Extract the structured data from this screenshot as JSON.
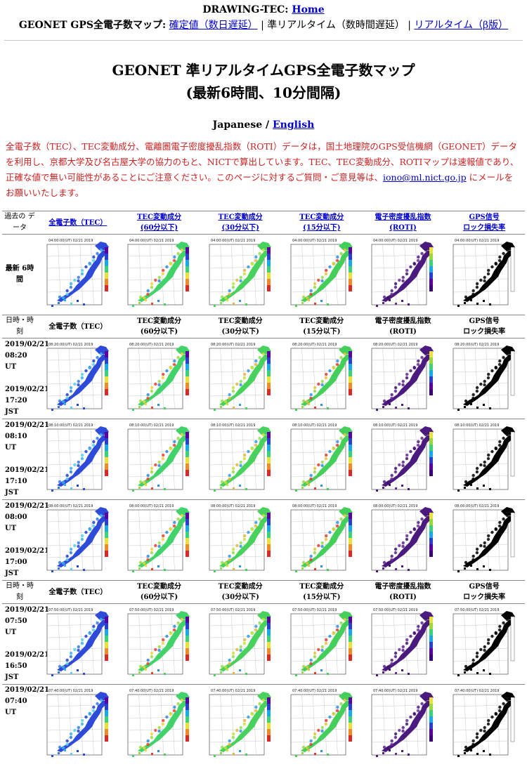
{
  "nav": {
    "site_label": "DRAWING-TEC:",
    "home_link": "Home",
    "map_label": "GEONET GPS全電子数マップ:",
    "final_link": "確定値（数日遅延）",
    "separator1": "|",
    "near_realtime": "準リアルタイム（数時間遅延）",
    "separator2": "|",
    "realtime_beta_link": "リアルタイム（β版）"
  },
  "title": {
    "line1": "GEONET 準リアルタイムGPS全電子数マップ",
    "line2": "(最新6時間、10分間隔)"
  },
  "language": {
    "japanese": "Japanese /",
    "english_link": "English"
  },
  "notice": {
    "text": "全電子数（TEC）、TEC変動成分、電離圏電子密度擾乱指数（ROTI）データは，国土地理院のGPS受信機網（GEONET）データを利用し、京都大学及び名古屋大学の協力のもと、NICTで算出しています。TEC、TEC変動成分、ROTIマップは速報値であり、正確な値で無い可能性があることにご注意ください。このページに対するご質問・ご意見等は、",
    "email_link": "iono@ml.nict.go.jp",
    "text_after": " にメールをお願いいたします。"
  },
  "table": {
    "past_data_label": "過去の データ",
    "link_headers": [
      {
        "line1": "全電子数（TEC）",
        "line2": ""
      },
      {
        "line1": "TEC変動成分",
        "line2": "(60分以下)"
      },
      {
        "line1": "TEC変動成分",
        "line2": "(30分以下)"
      },
      {
        "line1": "TEC変動成分",
        "line2": "(15分以下)"
      },
      {
        "line1": "電子密度擾乱指数",
        "line2": "(ROTI)"
      },
      {
        "line1": "GPS信号",
        "line2": "ロック損失率"
      }
    ],
    "latest_label": "最新 6時間",
    "datetime_label": "日時・時 刻",
    "plain_headers": [
      {
        "line1": "全電子数（TEC）",
        "line2": ""
      },
      {
        "line1": "TEC変動成分",
        "line2": "(60分以下)"
      },
      {
        "line1": "TEC変動成分",
        "line2": "(30分以下)"
      },
      {
        "line1": "TEC変動成分",
        "line2": "(15分以下)"
      },
      {
        "line1": "電子密度擾乱指数",
        "line2": "(ROTI)"
      },
      {
        "line1": "GPS信号",
        "line2": "ロック損失率"
      }
    ],
    "latest_stamp": "04:00:00(UT)  02/21 2019",
    "rows": [
      {
        "ut": "2019/02/21 08:20 UT",
        "jst": "2019/02/21 17:20 JST",
        "stamp": "08:20:00(UT)  02/21 2019"
      },
      {
        "ut": "2019/02/21 08:10 UT",
        "jst": "2019/02/21 17:10 JST",
        "stamp": "08:10:00(UT)  02/21 2019"
      },
      {
        "ut": "2019/02/21 08:00 UT",
        "jst": "2019/02/21 17:00 JST",
        "stamp": "08:00:00(UT)  02/21 2019"
      },
      {
        "ut": "2019/02/21 07:50 UT",
        "jst": "2019/02/21 16:50 JST",
        "stamp": "07:50:00(UT)  02/21 2019"
      },
      {
        "ut": "2019/02/21 07:40 UT",
        "jst": "",
        "stamp": "07:40:00(UT)  02/21 2019"
      }
    ],
    "map_palettes": {
      "tec": "#2b6fe8",
      "tec_var": "#7fd34a",
      "roti": "#5a1f8a",
      "lol": "#000000"
    }
  }
}
